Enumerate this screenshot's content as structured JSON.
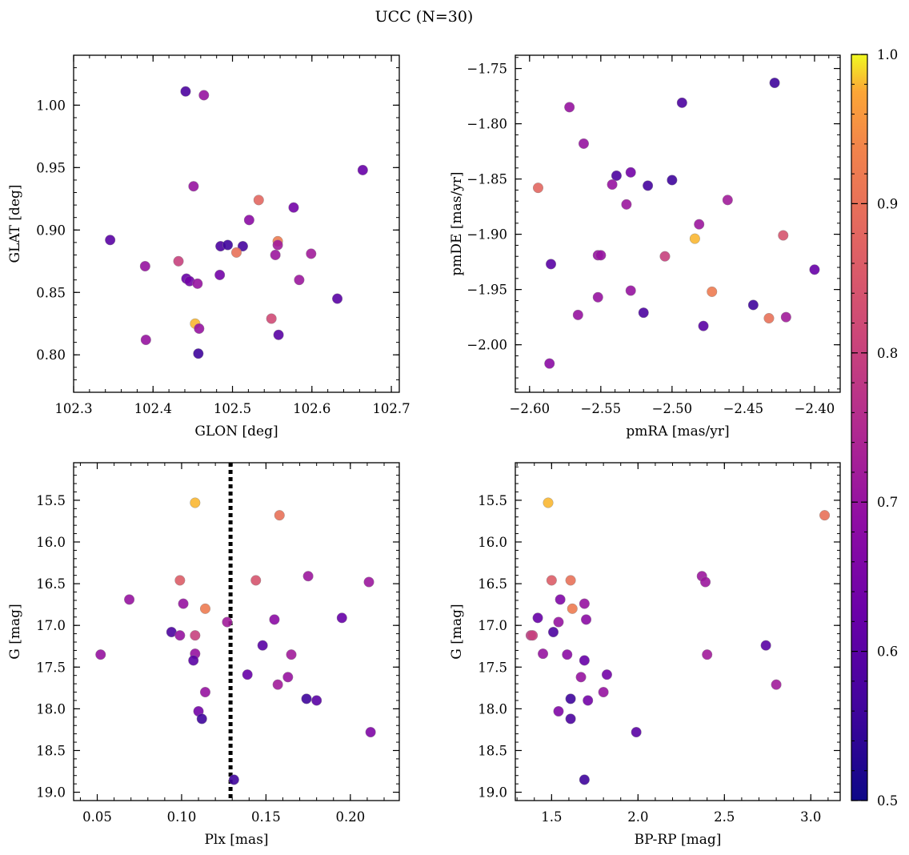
{
  "title": "UCC (N=30)",
  "colorbar": {
    "cmap": "plasma",
    "range": [
      0.5,
      1.0
    ],
    "ticks": [
      0.5,
      0.6,
      0.7,
      0.8,
      0.9,
      1.0
    ],
    "tick_labels": [
      "0.5",
      "0.6",
      "0.7",
      "0.8",
      "0.9",
      "1.0"
    ]
  },
  "chart_data": [
    {
      "type": "scatter",
      "xlabel": "GLON [deg]",
      "ylabel": "GLAT [deg]",
      "xlim": [
        102.3,
        102.71
      ],
      "ylim": [
        0.77,
        1.04
      ],
      "xticks": [
        102.3,
        102.4,
        102.5,
        102.6,
        102.7
      ],
      "xtick_labels": [
        "102.3",
        "102.4",
        "102.5",
        "102.6",
        "102.7"
      ],
      "yticks": [
        0.8,
        0.85,
        0.9,
        0.95,
        1.0
      ],
      "ytick_labels": [
        "0.80",
        "0.85",
        "0.90",
        "0.95",
        "1.00"
      ],
      "points": [
        {
          "x": 102.441,
          "y": 1.011,
          "c": 0.58
        },
        {
          "x": 102.464,
          "y": 1.008,
          "c": 0.7
        },
        {
          "x": 102.664,
          "y": 0.948,
          "c": 0.62
        },
        {
          "x": 102.451,
          "y": 0.935,
          "c": 0.7
        },
        {
          "x": 102.533,
          "y": 0.924,
          "c": 0.88
        },
        {
          "x": 102.577,
          "y": 0.918,
          "c": 0.64
        },
        {
          "x": 102.521,
          "y": 0.908,
          "c": 0.68
        },
        {
          "x": 102.346,
          "y": 0.892,
          "c": 0.6
        },
        {
          "x": 102.557,
          "y": 0.891,
          "c": 0.92
        },
        {
          "x": 102.557,
          "y": 0.888,
          "c": 0.72
        },
        {
          "x": 102.485,
          "y": 0.887,
          "c": 0.58
        },
        {
          "x": 102.494,
          "y": 0.888,
          "c": 0.56
        },
        {
          "x": 102.513,
          "y": 0.887,
          "c": 0.57
        },
        {
          "x": 102.505,
          "y": 0.882,
          "c": 0.9
        },
        {
          "x": 102.599,
          "y": 0.881,
          "c": 0.72
        },
        {
          "x": 102.554,
          "y": 0.88,
          "c": 0.71
        },
        {
          "x": 102.432,
          "y": 0.875,
          "c": 0.8
        },
        {
          "x": 102.39,
          "y": 0.871,
          "c": 0.7
        },
        {
          "x": 102.484,
          "y": 0.864,
          "c": 0.64
        },
        {
          "x": 102.442,
          "y": 0.861,
          "c": 0.62
        },
        {
          "x": 102.446,
          "y": 0.859,
          "c": 0.64
        },
        {
          "x": 102.456,
          "y": 0.857,
          "c": 0.7
        },
        {
          "x": 102.584,
          "y": 0.86,
          "c": 0.71
        },
        {
          "x": 102.632,
          "y": 0.845,
          "c": 0.6
        },
        {
          "x": 102.549,
          "y": 0.829,
          "c": 0.82
        },
        {
          "x": 102.453,
          "y": 0.825,
          "c": 0.98
        },
        {
          "x": 102.458,
          "y": 0.821,
          "c": 0.7
        },
        {
          "x": 102.558,
          "y": 0.816,
          "c": 0.6
        },
        {
          "x": 102.391,
          "y": 0.812,
          "c": 0.7
        },
        {
          "x": 102.457,
          "y": 0.801,
          "c": 0.56
        }
      ]
    },
    {
      "type": "scatter",
      "xlabel": "pmRA [mas/yr]",
      "ylabel": "pmDE [mas/yr]",
      "xlim": [
        -2.61,
        -2.382
      ],
      "ylim": [
        -2.043,
        -1.738
      ],
      "xticks": [
        -2.6,
        -2.55,
        -2.5,
        -2.45,
        -2.4
      ],
      "xtick_labels": [
        "−2.60",
        "−2.55",
        "−2.50",
        "−2.45",
        "−2.40"
      ],
      "yticks": [
        -1.75,
        -1.8,
        -1.85,
        -1.9,
        -1.95,
        -2.0
      ],
      "ytick_labels": [
        "−1.75",
        "−1.80",
        "−1.85",
        "−1.90",
        "−1.95",
        "−2.00"
      ],
      "points": [
        {
          "x": -2.428,
          "y": -1.763,
          "c": 0.56
        },
        {
          "x": -2.493,
          "y": -1.781,
          "c": 0.58
        },
        {
          "x": -2.572,
          "y": -1.785,
          "c": 0.7
        },
        {
          "x": -2.562,
          "y": -1.818,
          "c": 0.7
        },
        {
          "x": -2.539,
          "y": -1.847,
          "c": 0.58
        },
        {
          "x": -2.529,
          "y": -1.844,
          "c": 0.64
        },
        {
          "x": -2.542,
          "y": -1.855,
          "c": 0.7
        },
        {
          "x": -2.517,
          "y": -1.856,
          "c": 0.57
        },
        {
          "x": -2.5,
          "y": -1.851,
          "c": 0.56
        },
        {
          "x": -2.594,
          "y": -1.858,
          "c": 0.88
        },
        {
          "x": -2.461,
          "y": -1.869,
          "c": 0.72
        },
        {
          "x": -2.532,
          "y": -1.873,
          "c": 0.71
        },
        {
          "x": -2.481,
          "y": -1.891,
          "c": 0.71
        },
        {
          "x": -2.422,
          "y": -1.901,
          "c": 0.84
        },
        {
          "x": -2.484,
          "y": -1.904,
          "c": 0.98
        },
        {
          "x": -2.505,
          "y": -1.92,
          "c": 0.8
        },
        {
          "x": -2.552,
          "y": -1.919,
          "c": 0.7
        },
        {
          "x": -2.55,
          "y": -1.919,
          "c": 0.7
        },
        {
          "x": -2.585,
          "y": -1.927,
          "c": 0.6
        },
        {
          "x": -2.4,
          "y": -1.932,
          "c": 0.62
        },
        {
          "x": -2.529,
          "y": -1.951,
          "c": 0.7
        },
        {
          "x": -2.472,
          "y": -1.952,
          "c": 0.92
        },
        {
          "x": -2.552,
          "y": -1.957,
          "c": 0.7
        },
        {
          "x": -2.443,
          "y": -1.964,
          "c": 0.56
        },
        {
          "x": -2.52,
          "y": -1.971,
          "c": 0.58
        },
        {
          "x": -2.566,
          "y": -1.973,
          "c": 0.7
        },
        {
          "x": -2.42,
          "y": -1.975,
          "c": 0.72
        },
        {
          "x": -2.432,
          "y": -1.976,
          "c": 0.9
        },
        {
          "x": -2.478,
          "y": -1.983,
          "c": 0.6
        },
        {
          "x": -2.586,
          "y": -2.017,
          "c": 0.68
        }
      ]
    },
    {
      "type": "scatter",
      "xlabel": "Plx [mas]",
      "ylabel": "G [mag]",
      "xlim": [
        0.036,
        0.229
      ],
      "ylim": [
        19.1,
        15.05
      ],
      "y_inverted": true,
      "vline": {
        "x": 0.129,
        "style": "dotted",
        "color": "#000000"
      },
      "xticks": [
        0.05,
        0.1,
        0.15,
        0.2
      ],
      "xtick_labels": [
        "0.05",
        "0.10",
        "0.15",
        "0.20"
      ],
      "yticks": [
        15.5,
        16.0,
        16.5,
        17.0,
        17.5,
        18.0,
        18.5,
        19.0
      ],
      "ytick_labels": [
        "15.5",
        "16.0",
        "16.5",
        "17.0",
        "17.5",
        "18.0",
        "18.5",
        "19.0"
      ],
      "points": [
        {
          "x": 0.108,
          "y": 15.53,
          "c": 0.98
        },
        {
          "x": 0.158,
          "y": 15.68,
          "c": 0.9
        },
        {
          "x": 0.099,
          "y": 16.46,
          "c": 0.86
        },
        {
          "x": 0.144,
          "y": 16.46,
          "c": 0.84
        },
        {
          "x": 0.175,
          "y": 16.41,
          "c": 0.71
        },
        {
          "x": 0.211,
          "y": 16.48,
          "c": 0.71
        },
        {
          "x": 0.069,
          "y": 16.69,
          "c": 0.7
        },
        {
          "x": 0.101,
          "y": 16.74,
          "c": 0.7
        },
        {
          "x": 0.114,
          "y": 16.8,
          "c": 0.92
        },
        {
          "x": 0.195,
          "y": 16.91,
          "c": 0.62
        },
        {
          "x": 0.155,
          "y": 16.93,
          "c": 0.68
        },
        {
          "x": 0.127,
          "y": 16.96,
          "c": 0.72
        },
        {
          "x": 0.094,
          "y": 17.08,
          "c": 0.58
        },
        {
          "x": 0.099,
          "y": 17.12,
          "c": 0.7
        },
        {
          "x": 0.108,
          "y": 17.12,
          "c": 0.8
        },
        {
          "x": 0.148,
          "y": 17.24,
          "c": 0.6
        },
        {
          "x": 0.052,
          "y": 17.35,
          "c": 0.7
        },
        {
          "x": 0.108,
          "y": 17.34,
          "c": 0.7
        },
        {
          "x": 0.165,
          "y": 17.35,
          "c": 0.72
        },
        {
          "x": 0.107,
          "y": 17.42,
          "c": 0.6
        },
        {
          "x": 0.139,
          "y": 17.59,
          "c": 0.62
        },
        {
          "x": 0.163,
          "y": 17.62,
          "c": 0.7
        },
        {
          "x": 0.157,
          "y": 17.71,
          "c": 0.72
        },
        {
          "x": 0.114,
          "y": 17.8,
          "c": 0.7
        },
        {
          "x": 0.174,
          "y": 17.88,
          "c": 0.56
        },
        {
          "x": 0.18,
          "y": 17.9,
          "c": 0.6
        },
        {
          "x": 0.11,
          "y": 18.03,
          "c": 0.64
        },
        {
          "x": 0.112,
          "y": 18.12,
          "c": 0.56
        },
        {
          "x": 0.212,
          "y": 18.28,
          "c": 0.66
        },
        {
          "x": 0.131,
          "y": 18.85,
          "c": 0.56
        }
      ]
    },
    {
      "type": "scatter",
      "xlabel": "BP-RP [mag]",
      "ylabel": "G [mag]",
      "xlim": [
        1.29,
        3.17
      ],
      "ylim": [
        19.1,
        15.05
      ],
      "y_inverted": true,
      "xticks": [
        1.5,
        2.0,
        2.5,
        3.0
      ],
      "xtick_labels": [
        "1.5",
        "2.0",
        "2.5",
        "3.0"
      ],
      "yticks": [
        15.5,
        16.0,
        16.5,
        17.0,
        17.5,
        18.0,
        18.5,
        19.0
      ],
      "ytick_labels": [
        "15.5",
        "16.0",
        "16.5",
        "17.0",
        "17.5",
        "18.0",
        "18.5",
        "19.0"
      ],
      "points": [
        {
          "x": 1.48,
          "y": 15.53,
          "c": 0.98
        },
        {
          "x": 3.08,
          "y": 15.68,
          "c": 0.9
        },
        {
          "x": 1.5,
          "y": 16.46,
          "c": 0.86
        },
        {
          "x": 1.61,
          "y": 16.46,
          "c": 0.9
        },
        {
          "x": 2.37,
          "y": 16.41,
          "c": 0.71
        },
        {
          "x": 2.39,
          "y": 16.48,
          "c": 0.71
        },
        {
          "x": 1.55,
          "y": 16.69,
          "c": 0.66
        },
        {
          "x": 1.69,
          "y": 16.74,
          "c": 0.7
        },
        {
          "x": 1.62,
          "y": 16.8,
          "c": 0.92
        },
        {
          "x": 1.42,
          "y": 16.91,
          "c": 0.62
        },
        {
          "x": 1.7,
          "y": 16.93,
          "c": 0.68
        },
        {
          "x": 1.54,
          "y": 16.96,
          "c": 0.7
        },
        {
          "x": 1.51,
          "y": 17.08,
          "c": 0.58
        },
        {
          "x": 1.38,
          "y": 17.12,
          "c": 0.78
        },
        {
          "x": 1.39,
          "y": 17.12,
          "c": 0.8
        },
        {
          "x": 2.74,
          "y": 17.24,
          "c": 0.6
        },
        {
          "x": 1.45,
          "y": 17.34,
          "c": 0.7
        },
        {
          "x": 1.59,
          "y": 17.35,
          "c": 0.68
        },
        {
          "x": 2.4,
          "y": 17.35,
          "c": 0.72
        },
        {
          "x": 1.69,
          "y": 17.42,
          "c": 0.62
        },
        {
          "x": 1.82,
          "y": 17.59,
          "c": 0.64
        },
        {
          "x": 1.67,
          "y": 17.62,
          "c": 0.7
        },
        {
          "x": 2.8,
          "y": 17.71,
          "c": 0.72
        },
        {
          "x": 1.8,
          "y": 17.8,
          "c": 0.7
        },
        {
          "x": 1.61,
          "y": 17.88,
          "c": 0.56
        },
        {
          "x": 1.71,
          "y": 17.9,
          "c": 0.64
        },
        {
          "x": 1.54,
          "y": 18.03,
          "c": 0.66
        },
        {
          "x": 1.61,
          "y": 18.12,
          "c": 0.58
        },
        {
          "x": 1.99,
          "y": 18.28,
          "c": 0.6
        },
        {
          "x": 1.69,
          "y": 18.85,
          "c": 0.56
        }
      ]
    }
  ]
}
